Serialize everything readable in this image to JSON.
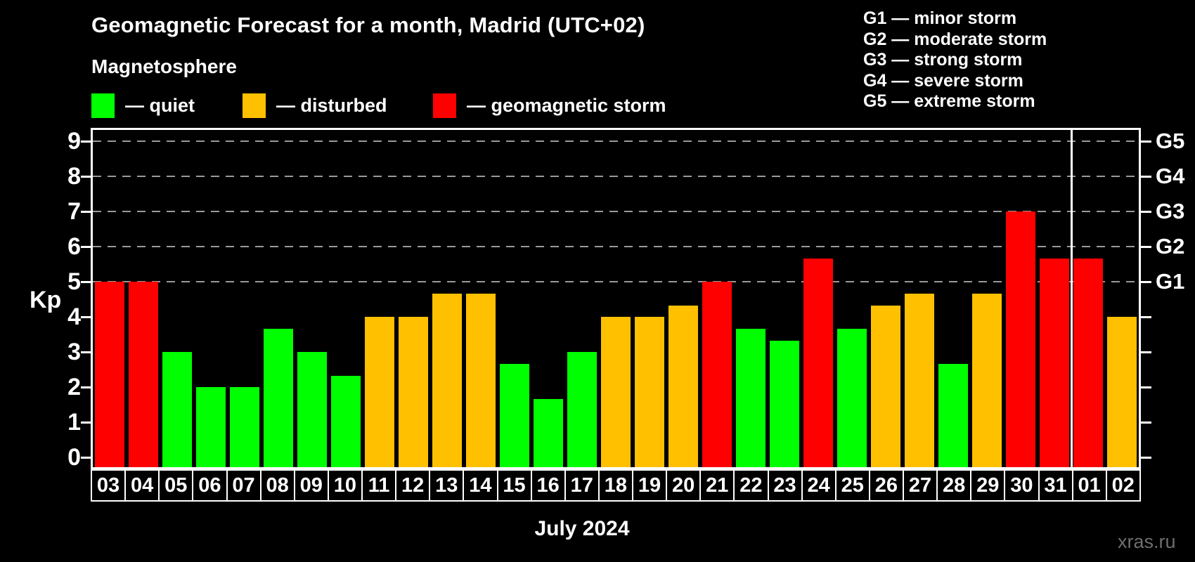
{
  "title": "Geomagnetic Forecast for a month, Madrid (UTC+02)",
  "subtitle": "Magnetosphere",
  "legend": {
    "items": [
      {
        "label": "— quiet",
        "status": "quiet"
      },
      {
        "label": "— disturbed",
        "status": "disturbed"
      },
      {
        "label": "— geomagnetic storm",
        "status": "storm"
      }
    ]
  },
  "storm_scale_legend": [
    "G1 — minor storm",
    "G2 — moderate storm",
    "G3 — strong storm",
    "G4 — severe storm",
    "G5 — extreme storm"
  ],
  "watermark": "xras.ru",
  "colors": {
    "quiet": "#00ff00",
    "disturbed": "#ffc000",
    "storm": "#ff0000",
    "gridline": "#9a9a9a",
    "axis": "#ffffff",
    "background": "#000000"
  },
  "chart_data": {
    "type": "bar",
    "title": "Geomagnetic Forecast for a month, Madrid (UTC+02)",
    "xlabel": "July 2024",
    "ylabel": "Kp",
    "ylim": [
      0,
      9
    ],
    "grid": "horizontal dashed gridlines at Kp 5,6,7,8,9",
    "legend_position": "top",
    "left_tick_labels": [
      "0",
      "1",
      "2",
      "3",
      "4",
      "5",
      "6",
      "7",
      "8",
      "9"
    ],
    "right_axis_labels": [
      {
        "label": "G1",
        "kp": 5
      },
      {
        "label": "G2",
        "kp": 6
      },
      {
        "label": "G3",
        "kp": 7
      },
      {
        "label": "G4",
        "kp": 8
      },
      {
        "label": "G5",
        "kp": 9
      }
    ],
    "month_separator_after_index": 28,
    "categories": [
      "03",
      "04",
      "05",
      "06",
      "07",
      "08",
      "09",
      "10",
      "11",
      "12",
      "13",
      "14",
      "15",
      "16",
      "17",
      "18",
      "19",
      "20",
      "21",
      "22",
      "23",
      "24",
      "25",
      "26",
      "27",
      "28",
      "29",
      "30",
      "31",
      "01",
      "02"
    ],
    "values": [
      5,
      5,
      3,
      2,
      2,
      3.67,
      3,
      2.33,
      4,
      4,
      4.67,
      4.67,
      2.67,
      1.67,
      3,
      4,
      4,
      4.33,
      5,
      3.67,
      3.33,
      5.67,
      3.67,
      4.33,
      4.67,
      2.67,
      4.67,
      7,
      5.67,
      5.67,
      4
    ],
    "statuses": [
      "storm",
      "storm",
      "quiet",
      "quiet",
      "quiet",
      "quiet",
      "quiet",
      "quiet",
      "disturbed",
      "disturbed",
      "disturbed",
      "disturbed",
      "quiet",
      "quiet",
      "quiet",
      "disturbed",
      "disturbed",
      "disturbed",
      "storm",
      "quiet",
      "quiet",
      "storm",
      "quiet",
      "disturbed",
      "disturbed",
      "quiet",
      "disturbed",
      "storm",
      "storm",
      "storm",
      "disturbed"
    ]
  }
}
